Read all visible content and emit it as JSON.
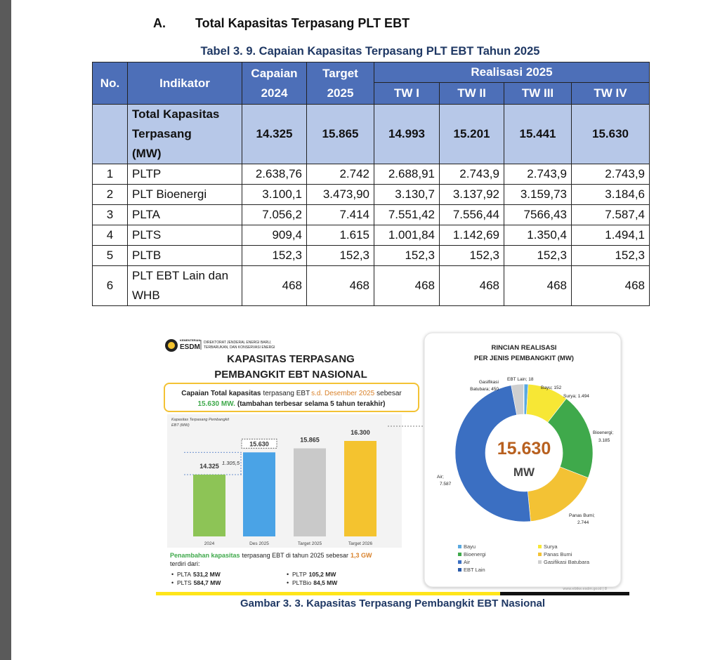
{
  "section": {
    "letter": "A.",
    "title": "Total Kapasitas Terpasang PLT EBT"
  },
  "table": {
    "caption": "Tabel 3. 9. Capaian Kapasitas Terpasang PLT EBT Tahun 2025",
    "header": {
      "no": "No.",
      "indicator": "Indikator",
      "achievement": [
        "Capaian",
        "2024"
      ],
      "target": [
        "Target",
        "2025"
      ],
      "realization": "Realisasi 2025",
      "quarters": [
        "TW I",
        "TW II",
        "TW III",
        "TW IV"
      ]
    },
    "total": {
      "label": [
        "Total Kapasitas",
        "Terpasang",
        "(MW)"
      ],
      "values": [
        "14.325",
        "15.865",
        "14.993",
        "15.201",
        "15.441",
        "15.630"
      ]
    },
    "rows": [
      [
        "1",
        "PLTP",
        "2.638,76",
        "2.742",
        "2.688,91",
        "2.743,9",
        "2.743,9",
        "2.743,9"
      ],
      [
        "2",
        "PLT Bioenergi",
        "3.100,1",
        "3.473,90",
        "3.130,7",
        "3.137,92",
        "3.159,73",
        "3.184,6"
      ],
      [
        "3",
        "PLTA",
        "7.056,2",
        "7.414",
        "7.551,42",
        "7.556,44",
        "7566,43",
        "7.587,4"
      ],
      [
        "4",
        "PLTS",
        "909,4",
        "1.615",
        "1.001,84",
        "1.142,69",
        "1.350,4",
        "1.494,1"
      ],
      [
        "5",
        "PLTB",
        "152,3",
        "152,3",
        "152,3",
        "152,3",
        "152,3",
        "152,3"
      ],
      [
        "6",
        "PLT EBT Lain dan WHB",
        "468",
        "468",
        "468",
        "468",
        "468",
        "468"
      ]
    ]
  },
  "figure": {
    "logo": {
      "ministry": "KEMENTERIAN",
      "abbr": "ESDM",
      "unit": [
        "DIREKTORAT JENDERAL ENERGI BARU,",
        "TERBARUKAN, DAN KONSERVASI ENERGI"
      ]
    },
    "title": [
      "KAPASITAS TERPASANG",
      "PEMBANGKIT EBT NASIONAL"
    ],
    "callout": {
      "line1": [
        "Capaian Total kapasitas",
        "terpasang EBT",
        "s.d. Desember 2025",
        "sebesar"
      ],
      "line2": [
        "15.630 MW.",
        "(tambahan terbesar selama 5 tahun terakhir)"
      ]
    },
    "bar_chart": {
      "type": "bar",
      "ylabel": [
        "Kapasitas Terpasang Pembangkit",
        "EBT (MW)"
      ],
      "categories": [
        "2024",
        "Des 2025",
        "Target 2025",
        "Target 2026"
      ],
      "values": [
        14325,
        15630,
        15865,
        16300
      ],
      "value_labels": [
        "14.325",
        "15.630",
        "15.865",
        "16.300"
      ],
      "colors": [
        "#8dc456",
        "#4aa3e6",
        "#c9c9c9",
        "#f4c32f"
      ],
      "ylim": [
        10700,
        17000
      ],
      "annotation": "1.305,5"
    },
    "summary": {
      "line1": [
        "Penambahan kapasitas",
        "terpasang EBT di tahun 2025 sebesar",
        "1,3 GW"
      ],
      "line2": "terdiri dari:",
      "items": [
        [
          "PLTA",
          "531,2 MW"
        ],
        [
          "PLTS",
          "584,7 MW"
        ],
        [
          "PLTP",
          "105,2 MW"
        ],
        [
          "PLTBio",
          "84,5 MW"
        ]
      ]
    },
    "donut": {
      "type": "pie",
      "title": [
        "RINCIAN REALISASI",
        "PER JENIS PEMBANGKIT (MW)"
      ],
      "categories": [
        "Bayu",
        "Surya",
        "Bioenergi",
        "Panas Bumi",
        "Air",
        "Gasifikasi Batubara",
        "EBT Lain"
      ],
      "values": [
        152,
        1494,
        3185,
        2744,
        7587,
        450,
        18
      ],
      "value_labels": [
        [
          "Bayu; 152"
        ],
        [
          "Surya; 1.494"
        ],
        [
          "Bioenergi;",
          "3.185"
        ],
        [
          "Panas Bumi;",
          "2.744"
        ],
        [
          "Air;",
          "7.587"
        ],
        [
          "Gasifikasi",
          "Batubara; 450"
        ],
        [
          "EBT Lain; 18"
        ]
      ],
      "colors": [
        "#5aa9e0",
        "#f7e735",
        "#3fa94b",
        "#f3c234",
        "#3b6fc2",
        "#cfcfcf",
        "#2a5aa8"
      ],
      "center": {
        "value": "15.630",
        "unit": "MW"
      }
    },
    "footer": "www.ebtke.esdm.go.id | 8",
    "caption": "Gambar 3. 3. Kapasitas Terpasang Pembangkit EBT Nasional"
  }
}
